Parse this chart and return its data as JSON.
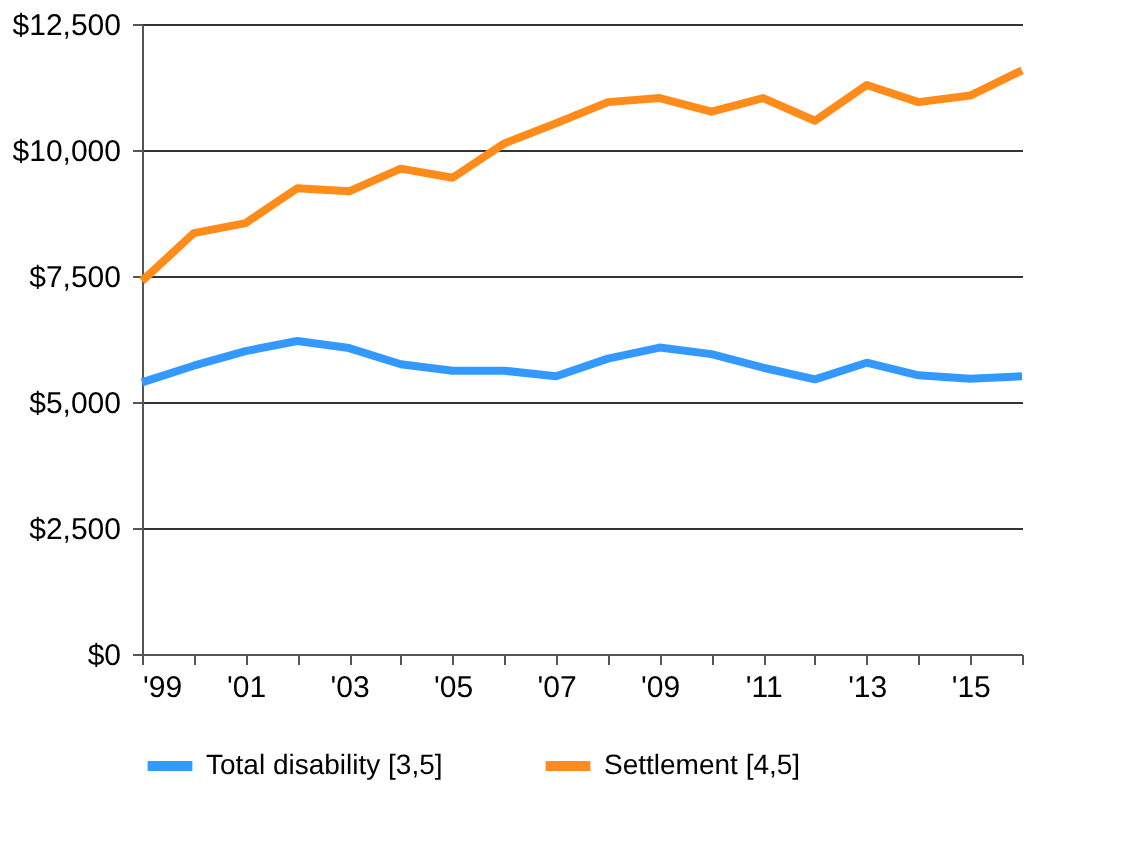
{
  "chart_data": {
    "type": "line",
    "x": [
      1999,
      2000,
      2001,
      2002,
      2003,
      2004,
      2005,
      2006,
      2007,
      2008,
      2009,
      2010,
      2011,
      2012,
      2013,
      2014,
      2015,
      2016
    ],
    "series": [
      {
        "name": "Total disability [3,5]",
        "color": "#3399ff",
        "values": [
          5390,
          5720,
          6010,
          6210,
          6070,
          5750,
          5620,
          5620,
          5510,
          5860,
          6080,
          5950,
          5680,
          5450,
          5780,
          5530,
          5460,
          5510
        ]
      },
      {
        "name": "Settlement [4,5]",
        "color": "#ff8c1a",
        "values": [
          7400,
          8350,
          8550,
          9240,
          9180,
          9630,
          9450,
          10130,
          10530,
          10950,
          11030,
          10760,
          11030,
          10580,
          11290,
          10950,
          11080,
          11580
        ]
      }
    ],
    "xlim": [
      1999,
      2016
    ],
    "xticks": [
      {
        "value": 1999,
        "label": "'99"
      },
      {
        "value": 2000,
        "label": null
      },
      {
        "value": 2001,
        "label": "'01"
      },
      {
        "value": 2002,
        "label": null
      },
      {
        "value": 2003,
        "label": "'03"
      },
      {
        "value": 2004,
        "label": null
      },
      {
        "value": 2005,
        "label": "'05"
      },
      {
        "value": 2006,
        "label": null
      },
      {
        "value": 2007,
        "label": "'07"
      },
      {
        "value": 2008,
        "label": null
      },
      {
        "value": 2009,
        "label": "'09"
      },
      {
        "value": 2010,
        "label": null
      },
      {
        "value": 2011,
        "label": "'11"
      },
      {
        "value": 2012,
        "label": null
      },
      {
        "value": 2013,
        "label": "'13"
      },
      {
        "value": 2014,
        "label": null
      },
      {
        "value": 2015,
        "label": "'15"
      },
      {
        "value": 2016,
        "label": null
      }
    ],
    "ylim": [
      0,
      12500
    ],
    "yticks": [
      {
        "value": 0,
        "label": "$0"
      },
      {
        "value": 2500,
        "label": "$2,500"
      },
      {
        "value": 5000,
        "label": "$5,000"
      },
      {
        "value": 7500,
        "label": "$7,500"
      },
      {
        "value": 10000,
        "label": "$10,000"
      },
      {
        "value": 12500,
        "label": "$12,500"
      }
    ],
    "grid": "y",
    "legend": "bottom",
    "marker": "none",
    "line_style": "solid"
  }
}
